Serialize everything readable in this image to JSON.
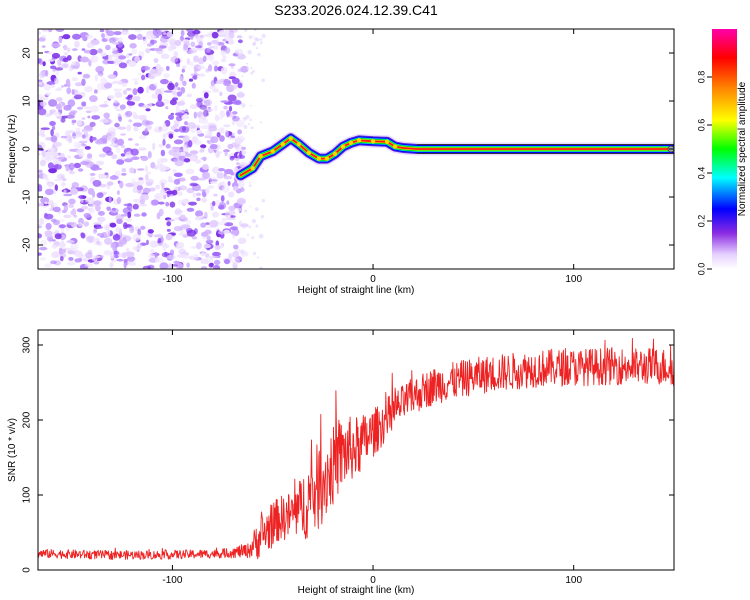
{
  "title": "S233.2026.024.12.39.C41",
  "chart_data": [
    {
      "type": "heatmap",
      "xlabel": "Height of straight line (km)",
      "ylabel": "Frequency (Hz)",
      "xlim": [
        -167,
        150
      ],
      "ylim": [
        -25,
        25
      ],
      "x_ticks": [
        -100,
        0,
        100
      ],
      "y_ticks": [
        -20,
        -10,
        0,
        10,
        20
      ],
      "colorbar": {
        "label": "Normalized spectral amplitude",
        "ticks": [
          0.0,
          0.2,
          0.4,
          0.6,
          0.8
        ],
        "range": [
          0.0,
          1.0
        ]
      },
      "noise_region_x": [
        -167,
        -67
      ],
      "trace": [
        {
          "x": -66,
          "y": -5.5
        },
        {
          "x": -60,
          "y": -4.0
        },
        {
          "x": -56,
          "y": -1.5
        },
        {
          "x": -50,
          "y": -0.5
        },
        {
          "x": -45,
          "y": 1.0
        },
        {
          "x": -41,
          "y": 2.2
        },
        {
          "x": -37,
          "y": 1.0
        },
        {
          "x": -32,
          "y": -0.8
        },
        {
          "x": -27,
          "y": -2.0
        },
        {
          "x": -23,
          "y": -2.0
        },
        {
          "x": -19,
          "y": -1.0
        },
        {
          "x": -15,
          "y": 0.5
        },
        {
          "x": -11,
          "y": 1.3
        },
        {
          "x": -7,
          "y": 1.8
        },
        {
          "x": 0,
          "y": 1.6
        },
        {
          "x": 7,
          "y": 1.5
        },
        {
          "x": 11,
          "y": 0.5
        },
        {
          "x": 15,
          "y": 0.2
        },
        {
          "x": 22,
          "y": 0.0
        },
        {
          "x": 50,
          "y": 0.0
        },
        {
          "x": 90,
          "y": 0.0
        },
        {
          "x": 150,
          "y": 0.0
        }
      ]
    },
    {
      "type": "line",
      "xlabel": "Height of straight line (km)",
      "ylabel": "SNR (10 * v/v)",
      "xlim": [
        -167,
        150
      ],
      "ylim": [
        0,
        320
      ],
      "x_ticks": [
        -100,
        0,
        100
      ],
      "y_ticks": [
        0,
        100,
        200,
        300
      ],
      "series": [
        {
          "name": "SNR",
          "color": "#ee2222",
          "x": [
            -167,
            -150,
            -130,
            -110,
            -90,
            -75,
            -62,
            -57,
            -52,
            -47,
            -42,
            -37,
            -32,
            -27,
            -22,
            -17,
            -12,
            -7,
            -2,
            3,
            8,
            13,
            18,
            23,
            30,
            40,
            50,
            60,
            70,
            80,
            90,
            100,
            110,
            120,
            130,
            140,
            150
          ],
          "y": [
            22,
            21,
            20,
            20,
            21,
            22,
            26,
            42,
            55,
            68,
            72,
            80,
            95,
            112,
            130,
            150,
            160,
            165,
            178,
            190,
            205,
            218,
            228,
            236,
            245,
            252,
            258,
            262,
            265,
            268,
            270,
            270,
            271,
            272,
            271,
            272,
            270
          ],
          "amp": [
            6,
            6,
            6,
            6,
            6,
            6,
            10,
            28,
            30,
            30,
            32,
            38,
            55,
            60,
            55,
            50,
            45,
            40,
            35,
            30,
            28,
            25,
            25,
            25,
            25,
            25,
            25,
            25,
            25,
            25,
            25,
            25,
            25,
            25,
            25,
            25,
            25
          ]
        }
      ]
    }
  ]
}
